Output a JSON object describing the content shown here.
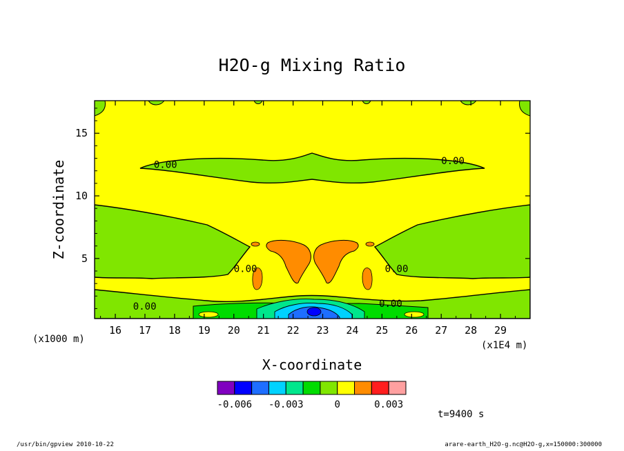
{
  "chart_data": {
    "type": "heatmap",
    "title": "H2O-g Mixing Ratio",
    "xlabel": "X-coordinate",
    "ylabel": "Z-coordinate",
    "x_unit_left": "(x1000 m)",
    "x_unit_right": "(x1E4 m)",
    "xlim": [
      15.3,
      30.0
    ],
    "ylim": [
      0.2,
      17.6
    ],
    "xticks": [
      16,
      17,
      18,
      19,
      20,
      21,
      22,
      23,
      24,
      25,
      26,
      27,
      28,
      29
    ],
    "yticks": [
      5,
      10,
      15
    ],
    "colorbar": {
      "levels": [
        -0.007,
        -0.006,
        -0.005,
        -0.004,
        -0.003,
        -0.002,
        -0.001,
        0,
        0.001,
        0.002,
        0.003,
        0.004
      ],
      "colors": [
        "#8000c0",
        "#0000ff",
        "#1e6eff",
        "#00d2ff",
        "#00e68c",
        "#00dc00",
        "#80e600",
        "#ffff00",
        "#ff8c00",
        "#ff1e1e",
        "#ffa0a0"
      ],
      "tick_labels": [
        {
          "value": -0.006,
          "label": "-0.006"
        },
        {
          "value": -0.003,
          "label": "-0.003"
        },
        {
          "value": 0,
          "label": "0"
        },
        {
          "value": 0.003,
          "label": "0.003"
        }
      ]
    },
    "contour_labels": [
      {
        "x": 17.3,
        "z": 12.5,
        "text": "0.00"
      },
      {
        "x": 27.0,
        "z": 12.8,
        "text": "0.00"
      },
      {
        "x": 20.0,
        "z": 4.2,
        "text": "0.00"
      },
      {
        "x": 25.1,
        "z": 4.2,
        "text": "0.00"
      },
      {
        "x": 16.6,
        "z": 1.2,
        "text": "0.00"
      },
      {
        "x": 24.9,
        "z": 1.4,
        "text": "0.00"
      }
    ]
  },
  "annotations": {
    "time": "t=9400 s",
    "footer_left": "/usr/bin/gpview   2010-10-22",
    "footer_right": "arare-earth_H2O-g.nc@H2O-g,x=150000:300000"
  }
}
